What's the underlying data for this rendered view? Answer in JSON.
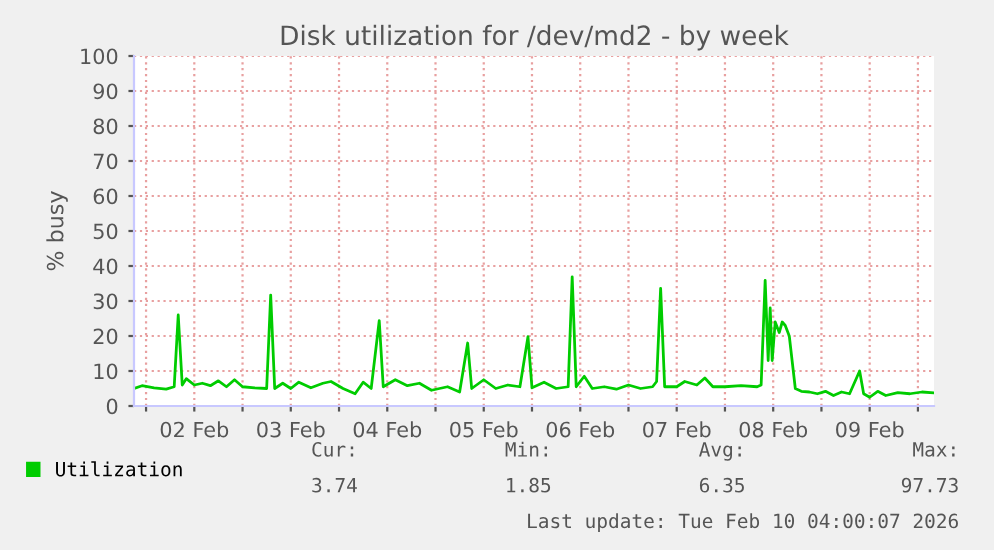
{
  "chart_data": {
    "type": "line",
    "title": "Disk utilization for /dev/md2 - by week",
    "ylabel": "% busy",
    "xlim": [
      "2026-02-01T21:00",
      "2026-02-10T04:00"
    ],
    "xticks": [
      {
        "value": "2026-02-02T00:00",
        "label": null
      },
      {
        "value": "2026-02-02T12:00",
        "label": "02 Feb"
      },
      {
        "value": "2026-02-03T00:00",
        "label": null
      },
      {
        "value": "2026-02-03T12:00",
        "label": "03 Feb"
      },
      {
        "value": "2026-02-04T00:00",
        "label": null
      },
      {
        "value": "2026-02-04T12:00",
        "label": "04 Feb"
      },
      {
        "value": "2026-02-05T00:00",
        "label": null
      },
      {
        "value": "2026-02-05T12:00",
        "label": "05 Feb"
      },
      {
        "value": "2026-02-06T00:00",
        "label": null
      },
      {
        "value": "2026-02-06T12:00",
        "label": "06 Feb"
      },
      {
        "value": "2026-02-07T00:00",
        "label": null
      },
      {
        "value": "2026-02-07T12:00",
        "label": "07 Feb"
      },
      {
        "value": "2026-02-08T00:00",
        "label": null
      },
      {
        "value": "2026-02-08T12:00",
        "label": "08 Feb"
      },
      {
        "value": "2026-02-09T00:00",
        "label": null
      },
      {
        "value": "2026-02-09T12:00",
        "label": "09 Feb"
      },
      {
        "value": "2026-02-10T00:00",
        "label": null
      }
    ],
    "ylim": [
      0,
      100
    ],
    "yticks": [
      0,
      10,
      20,
      30,
      40,
      50,
      60,
      70,
      80,
      90,
      100
    ],
    "grid": true,
    "legend": "bottom left",
    "marker": "none",
    "line_style": "solid",
    "x": [
      "2026-02-01T21:00",
      "2026-02-01T23:00",
      "2026-02-02T02:00",
      "2026-02-02T05:00",
      "2026-02-02T07:00",
      "2026-02-02T08:00",
      "2026-02-02T09:00",
      "2026-02-02T10:00",
      "2026-02-02T12:00",
      "2026-02-02T14:00",
      "2026-02-02T16:00",
      "2026-02-02T18:00",
      "2026-02-02T20:00",
      "2026-02-02T22:00",
      "2026-02-03T00:00",
      "2026-02-03T03:00",
      "2026-02-03T06:00",
      "2026-02-03T07:00",
      "2026-02-03T08:00",
      "2026-02-03T10:00",
      "2026-02-03T12:00",
      "2026-02-03T14:00",
      "2026-02-03T17:00",
      "2026-02-03T20:00",
      "2026-02-03T22:00",
      "2026-02-04T01:00",
      "2026-02-04T04:00",
      "2026-02-04T06:00",
      "2026-02-04T08:00",
      "2026-02-04T10:00",
      "2026-02-04T11:00",
      "2026-02-04T14:00",
      "2026-02-04T17:00",
      "2026-02-04T20:00",
      "2026-02-04T23:00",
      "2026-02-05T03:00",
      "2026-02-05T06:00",
      "2026-02-05T08:00",
      "2026-02-05T09:00",
      "2026-02-05T12:00",
      "2026-02-05T15:00",
      "2026-02-05T18:00",
      "2026-02-05T21:00",
      "2026-02-05T23:00",
      "2026-02-06T00:00",
      "2026-02-06T03:00",
      "2026-02-06T06:00",
      "2026-02-06T09:00",
      "2026-02-06T10:00",
      "2026-02-06T11:00",
      "2026-02-06T13:00",
      "2026-02-06T15:00",
      "2026-02-06T18:00",
      "2026-02-06T21:00",
      "2026-02-07T00:00",
      "2026-02-07T03:00",
      "2026-02-07T06:00",
      "2026-02-07T07:00",
      "2026-02-07T08:00",
      "2026-02-07T09:00",
      "2026-02-07T12:00",
      "2026-02-07T14:00",
      "2026-02-07T17:00",
      "2026-02-07T19:00",
      "2026-02-07T21:00",
      "2026-02-08T00:00",
      "2026-02-08T04:00",
      "2026-02-08T08:00",
      "2026-02-08T09:00",
      "2026-02-08T10:00",
      "2026-02-08T10:45",
      "2026-02-08T11:15",
      "2026-02-08T11:45",
      "2026-02-08T12:30",
      "2026-02-08T13:30",
      "2026-02-08T14:15",
      "2026-02-08T15:00",
      "2026-02-08T16:00",
      "2026-02-08T17:30",
      "2026-02-08T19:00",
      "2026-02-08T21:00",
      "2026-02-08T23:00",
      "2026-02-09T01:00",
      "2026-02-09T03:00",
      "2026-02-09T05:00",
      "2026-02-09T07:00",
      "2026-02-09T09:30",
      "2026-02-09T10:30",
      "2026-02-09T12:00",
      "2026-02-09T14:00",
      "2026-02-09T16:00",
      "2026-02-09T19:00",
      "2026-02-09T22:00",
      "2026-02-10T01:00",
      "2026-02-10T04:00"
    ],
    "series": [
      {
        "name": "Utilization",
        "color": "#00cc00",
        "values": [
          5,
          5.8,
          5.2,
          4.8,
          5.5,
          26,
          6,
          7.8,
          6,
          6.5,
          5.8,
          7.2,
          5.5,
          7.5,
          5.5,
          5.2,
          5,
          31.7,
          5,
          6.5,
          5,
          6.8,
          5.2,
          6.5,
          7,
          5,
          3.5,
          6.8,
          5,
          24.4,
          5.5,
          7.5,
          5.8,
          6.5,
          4.5,
          5.5,
          4,
          18,
          5,
          7.5,
          5,
          6,
          5.5,
          19.8,
          5.2,
          6.8,
          5,
          5.5,
          36.9,
          5.5,
          8.5,
          5,
          5.5,
          4.8,
          6,
          5,
          5.5,
          7,
          33.6,
          5.5,
          5.5,
          7,
          6,
          8,
          5.5,
          5.5,
          5.8,
          5.5,
          6,
          35.9,
          13,
          28,
          13,
          24,
          21,
          24,
          23,
          20,
          5,
          4.2,
          4,
          3.5,
          4.2,
          3,
          4,
          3.5,
          10,
          3.5,
          2.5,
          4.2,
          3,
          3.8,
          3.5,
          4,
          3.74
        ]
      }
    ],
    "annotations": [
      "Cur:",
      "Min:",
      "Avg:",
      "Max:",
      "3.74",
      "1.85",
      "6.35",
      "97.73",
      "Last update: Tue Feb 10 04:00:07 2026"
    ]
  }
}
